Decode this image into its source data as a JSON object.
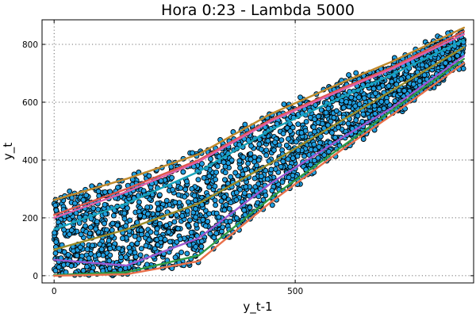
{
  "chart_data": {
    "type": "scatter",
    "title": "Hora 0:23 - Lambda 5000",
    "xlabel": "y_t-1",
    "ylabel": "y_t",
    "xlim": [
      -25,
      870
    ],
    "ylim": [
      -25,
      885
    ],
    "xticks": [
      0,
      500
    ],
    "yticks": [
      0,
      200,
      400,
      600,
      800
    ],
    "grid": true,
    "legend": "none",
    "point_color": "#1f9ee0",
    "point_count": 2200,
    "point_seed": 7,
    "series": [
      {
        "color": "#c08a2c",
        "points": [
          [
            0,
            262
          ],
          [
            150,
            335
          ],
          [
            300,
            420
          ],
          [
            450,
            560
          ],
          [
            600,
            670
          ],
          [
            700,
            740
          ],
          [
            850,
            858
          ]
        ]
      },
      {
        "color": "#e0574a",
        "points": [
          [
            0,
            210
          ],
          [
            150,
            300
          ],
          [
            300,
            400
          ],
          [
            450,
            540
          ],
          [
            600,
            650
          ],
          [
            700,
            720
          ],
          [
            850,
            845
          ]
        ]
      },
      {
        "color": "#e05fa8",
        "points": [
          [
            0,
            200
          ],
          [
            150,
            290
          ],
          [
            300,
            395
          ],
          [
            450,
            535
          ],
          [
            600,
            645
          ],
          [
            700,
            715
          ],
          [
            850,
            835
          ]
        ]
      },
      {
        "color": "#17a2b8",
        "points": [
          [
            0,
            160
          ],
          [
            150,
            250
          ],
          [
            300,
            360
          ],
          [
            450,
            505
          ],
          [
            600,
            620
          ],
          [
            700,
            695
          ],
          [
            850,
            815
          ]
        ]
      },
      {
        "color": "#9a8b28",
        "points": [
          [
            0,
            90
          ],
          [
            150,
            160
          ],
          [
            300,
            250
          ],
          [
            450,
            390
          ],
          [
            600,
            540
          ],
          [
            700,
            640
          ],
          [
            850,
            790
          ]
        ]
      },
      {
        "color": "#9b59d0",
        "points": [
          [
            0,
            55
          ],
          [
            150,
            35
          ],
          [
            300,
            130
          ],
          [
            450,
            320
          ],
          [
            600,
            480
          ],
          [
            700,
            580
          ],
          [
            850,
            760
          ]
        ]
      },
      {
        "color": "#2e9a45",
        "points": [
          [
            0,
            2
          ],
          [
            150,
            12
          ],
          [
            300,
            70
          ],
          [
            450,
            270
          ],
          [
            600,
            450
          ],
          [
            700,
            570
          ],
          [
            850,
            750
          ]
        ]
      },
      {
        "color": "#e8704a",
        "points": [
          [
            0,
            0
          ],
          [
            150,
            5
          ],
          [
            300,
            50
          ],
          [
            450,
            255
          ],
          [
            600,
            440
          ],
          [
            700,
            555
          ],
          [
            850,
            735
          ]
        ]
      }
    ]
  }
}
